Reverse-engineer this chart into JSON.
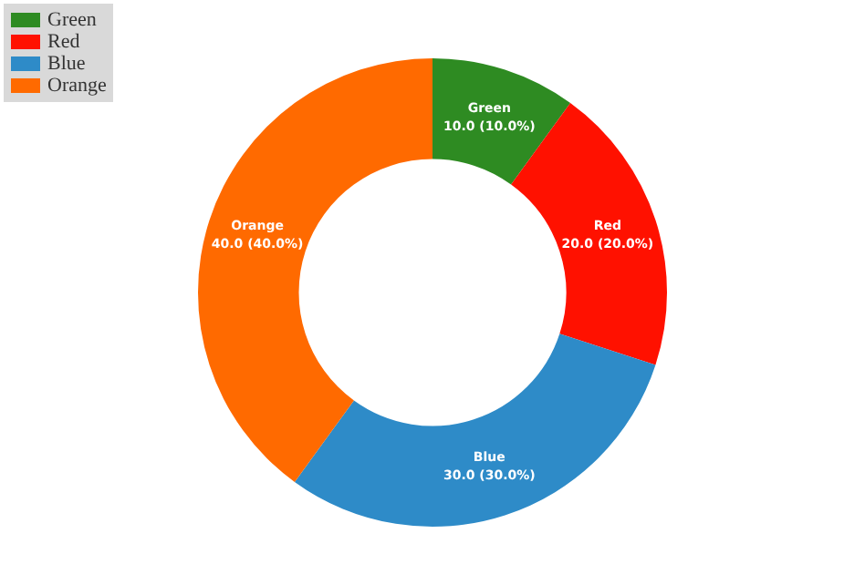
{
  "chart_data": {
    "type": "donut",
    "categories": [
      "Green",
      "Red",
      "Blue",
      "Orange"
    ],
    "values": [
      10.0,
      20.0,
      30.0,
      40.0
    ],
    "colors": [
      "#2e8b22",
      "#ff1100",
      "#2e8bc8",
      "#ff6a00"
    ],
    "value_labels": [
      "10.0 (10.0%)",
      "20.0 (20.0%)",
      "30.0 (30.0%)",
      "40.0 (40.0%)"
    ],
    "legend": "top left"
  }
}
